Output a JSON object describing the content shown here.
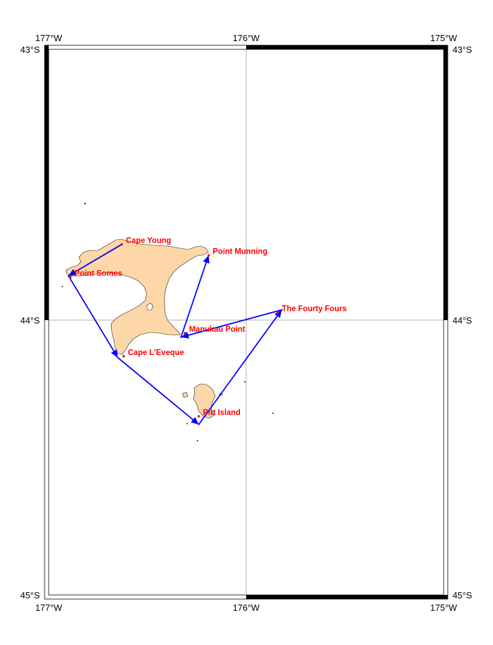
{
  "map": {
    "extent": {
      "lon_min": -177,
      "lon_max": -175,
      "lat_min": -45,
      "lat_max": -43
    },
    "frame_ticks": {
      "top": [
        "177°W",
        "176°W",
        "175°W"
      ],
      "bottom": [
        "177°W",
        "176°W",
        "175°W"
      ],
      "left": [
        "43°S",
        "44°S",
        "45°S"
      ],
      "right": [
        "43°S",
        "44°S",
        "45°S"
      ]
    },
    "gridlines": {
      "lon": [
        -176
      ],
      "lat": [
        -44
      ]
    },
    "colors": {
      "land": "#fdd7a7",
      "coast": "#222222",
      "route": "#0000ff",
      "points": "#ff0000",
      "grid": "#999999"
    },
    "places": [
      {
        "name": "Cape Young",
        "lon": -176.63,
        "lat": -43.715
      },
      {
        "name": "Point Munning",
        "lon": -176.19,
        "lat": -43.755
      },
      {
        "name": "Point Somes",
        "lon": -176.89,
        "lat": -43.835
      },
      {
        "name": "The Fourty Fours",
        "lon": -175.84,
        "lat": -43.965
      },
      {
        "name": "Manukau Point",
        "lon": -176.31,
        "lat": -44.04
      },
      {
        "name": "Cape L'Eveque",
        "lon": -176.62,
        "lat": -44.125
      },
      {
        "name": "Pitt Island",
        "lon": -176.24,
        "lat": -44.345
      }
    ],
    "route": [
      {
        "lon": -176.63,
        "lat": -43.715
      },
      {
        "lon": -176.9,
        "lat": -43.83
      },
      {
        "lon": -176.65,
        "lat": -44.13
      },
      {
        "lon": -176.24,
        "lat": -44.375
      },
      {
        "lon": -175.82,
        "lat": -43.955
      },
      {
        "lon": -176.33,
        "lat": -44.055
      },
      {
        "lon": -176.19,
        "lat": -43.755
      }
    ]
  }
}
